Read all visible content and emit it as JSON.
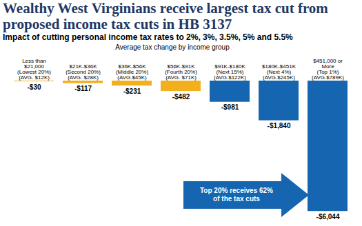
{
  "chart_data": {
    "type": "bar",
    "title": "Wealthy West Virginians receive largest tax cut from proposed income tax cuts in HB 3137",
    "subtitle": "Impact of cutting personal income tax rates to 2%, 3%, 3.5%, 5% and 5.5%",
    "xlabel": "Average tax change by income group",
    "categories": [
      "Less than\n$21,000\n(Lowest 20%)\n(AVG. $12K)",
      "$21K-$36K\n(Second 20%)\n(AVG. $28K)",
      "$36K-$56K\n(Middle 20%)\n(AVG.$45K)",
      "$56K-$91K\n(Fourth 20%)\n(AVG. $71K)",
      "$91K-$180K\n(Next 15%)\n(AVG.$122K)",
      "$180K-$451K\n(Next 4%)\n(AVG.$245K)",
      "$451,000 or\nMore\n(Top 1%)\n(AVG.$789K)"
    ],
    "values": [
      -30,
      -117,
      -231,
      -482,
      -981,
      -1840,
      -6044
    ],
    "value_labels": [
      "-$30",
      "-$117",
      "-$231",
      "-$482",
      "-$981",
      "-$1,840",
      "-$6,044"
    ],
    "colors": [
      "#f2b01e",
      "#f2b01e",
      "#f2b01e",
      "#f2b01e",
      "#1565b0",
      "#1565b0",
      "#1565b0"
    ],
    "ylim": [
      -6100,
      0
    ],
    "data_labels": true,
    "tick_labels": "x",
    "annotation": "Top 20% receives 62%\nof the tax cuts"
  }
}
